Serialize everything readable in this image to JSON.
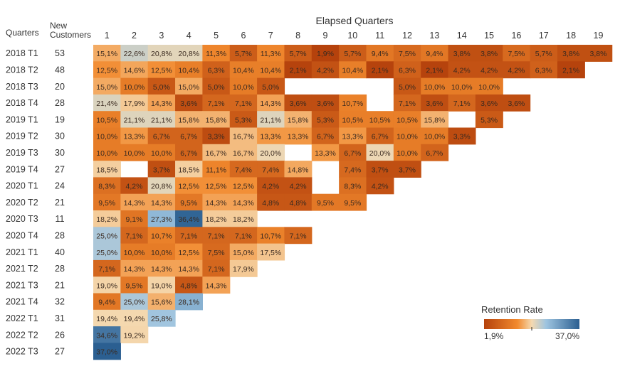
{
  "chart_data": {
    "type": "heatmap",
    "title": "",
    "column_group_label": "Elapsed Quarters",
    "row_header": "Quarters",
    "new_customers_header": [
      "New",
      "Customers"
    ],
    "columns": [
      "1",
      "2",
      "3",
      "4",
      "5",
      "6",
      "7",
      "8",
      "9",
      "10",
      "11",
      "12",
      "13",
      "14",
      "15",
      "16",
      "17",
      "18",
      "19"
    ],
    "rows": [
      {
        "label": "2018 T1",
        "new": "53",
        "values": [
          "15,1%",
          "22,6%",
          "20,8%",
          "20,8%",
          "11,3%",
          "5,7%",
          "11,3%",
          "5,7%",
          "1,9%",
          "5,7%",
          "9,4%",
          "7,5%",
          "9,4%",
          "3,8%",
          "3,8%",
          "7,5%",
          "5,7%",
          "3,8%",
          "3,8%"
        ]
      },
      {
        "label": "2018 T2",
        "new": "48",
        "values": [
          "12,5%",
          "14,6%",
          "12,5%",
          "10,4%",
          "6,3%",
          "10,4%",
          "10,4%",
          "2,1%",
          "4,2%",
          "10,4%",
          "2,1%",
          "6,3%",
          "2,1%",
          "4,2%",
          "4,2%",
          "4,2%",
          "6,3%",
          "2,1%",
          null
        ]
      },
      {
        "label": "2018 T3",
        "new": "20",
        "values": [
          "15,0%",
          "10,0%",
          "5,0%",
          "15,0%",
          "5,0%",
          "10,0%",
          "5,0%",
          null,
          null,
          null,
          null,
          "5,0%",
          "10,0%",
          "10,0%",
          "10,0%",
          null,
          null,
          null,
          null
        ]
      },
      {
        "label": "2018 T4",
        "new": "28",
        "values": [
          "21,4%",
          "17,9%",
          "14,3%",
          "3,6%",
          "7,1%",
          "7,1%",
          "14,3%",
          "3,6%",
          "3,6%",
          "10,7%",
          null,
          "7,1%",
          "3,6%",
          "7,1%",
          "3,6%",
          "3,6%",
          null,
          null,
          null
        ]
      },
      {
        "label": "2019 T1",
        "new": "19",
        "values": [
          "10,5%",
          "21,1%",
          "21,1%",
          "15,8%",
          "15,8%",
          "5,3%",
          "21,1%",
          "15,8%",
          "5,3%",
          "10,5%",
          "10,5%",
          "10,5%",
          "15,8%",
          null,
          "5,3%",
          null,
          null,
          null,
          null
        ]
      },
      {
        "label": "2019 T2",
        "new": "30",
        "values": [
          "10,0%",
          "13,3%",
          "6,7%",
          "6,7%",
          "3,3%",
          "16,7%",
          "13,3%",
          "13,3%",
          "6,7%",
          "13,3%",
          "6,7%",
          "10,0%",
          "10,0%",
          "3,3%",
          null,
          null,
          null,
          null,
          null
        ]
      },
      {
        "label": "2019 T3",
        "new": "30",
        "values": [
          "10,0%",
          "10,0%",
          "10,0%",
          "6,7%",
          "16,7%",
          "16,7%",
          "20,0%",
          null,
          "13,3%",
          "6,7%",
          "20,0%",
          "10,0%",
          "6,7%",
          null,
          null,
          null,
          null,
          null,
          null
        ]
      },
      {
        "label": "2019 T4",
        "new": "27",
        "values": [
          "18,5%",
          null,
          "3,7%",
          "18,5%",
          "11,1%",
          "7,4%",
          "7,4%",
          "14,8%",
          null,
          "7,4%",
          "3,7%",
          "3,7%",
          null,
          null,
          null,
          null,
          null,
          null,
          null
        ]
      },
      {
        "label": "2020 T1",
        "new": "24",
        "values": [
          "8,3%",
          "4,2%",
          "20,8%",
          "12,5%",
          "12,5%",
          "12,5%",
          "4,2%",
          "4,2%",
          null,
          "8,3%",
          "4,2%",
          null,
          null,
          null,
          null,
          null,
          null,
          null,
          null
        ]
      },
      {
        "label": "2020 T2",
        "new": "21",
        "values": [
          "9,5%",
          "14,3%",
          "14,3%",
          "9,5%",
          "14,3%",
          "14,3%",
          "4,8%",
          "4,8%",
          "9,5%",
          "9,5%",
          null,
          null,
          null,
          null,
          null,
          null,
          null,
          null,
          null
        ]
      },
      {
        "label": "2020 T3",
        "new": "11",
        "values": [
          "18,2%",
          "9,1%",
          "27,3%",
          "36,4%",
          "18,2%",
          "18,2%",
          null,
          null,
          null,
          null,
          null,
          null,
          null,
          null,
          null,
          null,
          null,
          null,
          null
        ]
      },
      {
        "label": "2020 T4",
        "new": "28",
        "values": [
          "25,0%",
          "7,1%",
          "10,7%",
          "7,1%",
          "7,1%",
          "7,1%",
          "10,7%",
          "7,1%",
          null,
          null,
          null,
          null,
          null,
          null,
          null,
          null,
          null,
          null,
          null
        ]
      },
      {
        "label": "2021 T1",
        "new": "40",
        "values": [
          "25,0%",
          "10,0%",
          "10,0%",
          "12,5%",
          "7,5%",
          "15,0%",
          "17,5%",
          null,
          null,
          null,
          null,
          null,
          null,
          null,
          null,
          null,
          null,
          null,
          null
        ]
      },
      {
        "label": "2021 T2",
        "new": "28",
        "values": [
          "7,1%",
          "14,3%",
          "14,3%",
          "14,3%",
          "7,1%",
          "17,9%",
          null,
          null,
          null,
          null,
          null,
          null,
          null,
          null,
          null,
          null,
          null,
          null,
          null
        ]
      },
      {
        "label": "2021 T3",
        "new": "21",
        "values": [
          "19,0%",
          "9,5%",
          "19,0%",
          "4,8%",
          "14,3%",
          null,
          null,
          null,
          null,
          null,
          null,
          null,
          null,
          null,
          null,
          null,
          null,
          null,
          null
        ]
      },
      {
        "label": "2021 T4",
        "new": "32",
        "values": [
          "9,4%",
          "25,0%",
          "15,6%",
          "28,1%",
          null,
          null,
          null,
          null,
          null,
          null,
          null,
          null,
          null,
          null,
          null,
          null,
          null,
          null,
          null
        ]
      },
      {
        "label": "2022 T1",
        "new": "31",
        "values": [
          "19,4%",
          "19,4%",
          "25,8%",
          null,
          null,
          null,
          null,
          null,
          null,
          null,
          null,
          null,
          null,
          null,
          null,
          null,
          null,
          null,
          null
        ]
      },
      {
        "label": "2022 T2",
        "new": "26",
        "values": [
          "34,6%",
          "19,2%",
          null,
          null,
          null,
          null,
          null,
          null,
          null,
          null,
          null,
          null,
          null,
          null,
          null,
          null,
          null,
          null,
          null
        ]
      },
      {
        "label": "2022 T3",
        "new": "27",
        "values": [
          "37,0%",
          null,
          null,
          null,
          null,
          null,
          null,
          null,
          null,
          null,
          null,
          null,
          null,
          null,
          null,
          null,
          null,
          null,
          null
        ]
      }
    ],
    "legend": {
      "title": "Retention Rate",
      "min_label": "1,9%",
      "max_label": "37,0%",
      "min": 1.9,
      "max": 37.0,
      "midpoint": 19.45,
      "placement": "bottom-right"
    },
    "colors": {
      "low": "#b5420c",
      "mid_low": "#f28a2e",
      "mid": "#f4d9b0",
      "mid_high": "#9ec4e0",
      "high": "#2b5f91"
    }
  }
}
